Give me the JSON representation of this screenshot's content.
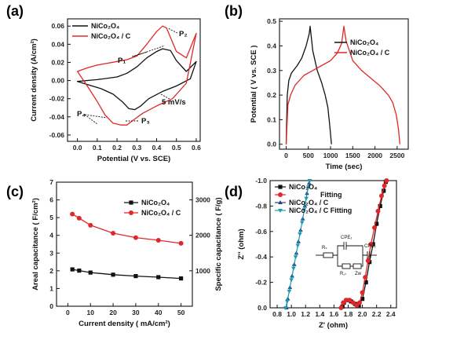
{
  "colors": {
    "black_series": "#111111",
    "red_series": "#e0282a",
    "blue_series": "#2a3f8f",
    "teal_series": "#18a0b0",
    "axis": "#111111"
  },
  "chart_data": [
    {
      "id": "a",
      "panel_label": "(a)",
      "type": "line",
      "xlabel": "Potential (V vs. SCE)",
      "ylabel": "Current density (A/cm²)",
      "xlim": [
        -0.05,
        0.62
      ],
      "ylim": [
        -0.067,
        0.068
      ],
      "xticks": [
        "0.0",
        "0.1",
        "0.2",
        "0.3",
        "0.4",
        "0.5",
        "0.6"
      ],
      "yticks": [
        "-0.06",
        "-0.04",
        "-0.02",
        "0.00",
        "0.02",
        "0.04",
        "0.06"
      ],
      "legend": "top-left",
      "annotations": [
        "P₁",
        "P₂",
        "P₃",
        "P₄",
        "5 mV/s"
      ],
      "series": [
        {
          "name": "NiCo₂O₄",
          "color": "#111111",
          "x": [
            0.0,
            0.1,
            0.2,
            0.25,
            0.3,
            0.35,
            0.4,
            0.43,
            0.47,
            0.5,
            0.55,
            0.6,
            0.57,
            0.5,
            0.43,
            0.36,
            0.32,
            0.29,
            0.26,
            0.23,
            0.18,
            0.12,
            0.06,
            0.0
          ],
          "y": [
            -0.001,
            0.001,
            0.004,
            0.008,
            0.015,
            0.025,
            0.032,
            0.035,
            0.033,
            0.022,
            0.01,
            0.021,
            0.002,
            -0.006,
            -0.012,
            -0.02,
            -0.028,
            -0.032,
            -0.031,
            -0.024,
            -0.015,
            -0.009,
            -0.005,
            -0.001
          ]
        },
        {
          "name": "NiCo₂O₄ / C",
          "color": "#e0282a",
          "x": [
            0.0,
            0.05,
            0.1,
            0.15,
            0.2,
            0.25,
            0.3,
            0.35,
            0.4,
            0.43,
            0.45,
            0.5,
            0.55,
            0.6,
            0.55,
            0.48,
            0.4,
            0.33,
            0.28,
            0.25,
            0.22,
            0.18,
            0.14,
            0.1,
            0.05,
            0.0
          ],
          "y": [
            0.01,
            0.014,
            0.017,
            0.019,
            0.021,
            0.023,
            0.027,
            0.04,
            0.054,
            0.06,
            0.058,
            0.032,
            0.025,
            0.052,
            -0.003,
            -0.02,
            -0.028,
            -0.036,
            -0.044,
            -0.049,
            -0.049,
            -0.047,
            -0.038,
            -0.023,
            -0.006,
            0.01
          ]
        }
      ]
    },
    {
      "id": "b",
      "panel_label": "(b)",
      "type": "line",
      "xlabel": "Time (sec)",
      "ylabel": "Potential ( V vs. SCE )",
      "xlim": [
        -150,
        2750
      ],
      "ylim": [
        -0.02,
        0.51
      ],
      "xticks": [
        "0",
        "500",
        "1000",
        "1500",
        "2000",
        "2500"
      ],
      "yticks": [
        "0.0",
        "0.1",
        "0.2",
        "0.3",
        "0.4",
        "0.5"
      ],
      "legend": "top-right",
      "series": [
        {
          "name": "NiCo₂O₄",
          "color": "#111111",
          "x": [
            0,
            25,
            60,
            120,
            250,
            350,
            450,
            520,
            540,
            600,
            700,
            800,
            880,
            940,
            980,
            1020
          ],
          "y": [
            0.0,
            0.2,
            0.26,
            0.29,
            0.32,
            0.35,
            0.4,
            0.45,
            0.48,
            0.38,
            0.3,
            0.25,
            0.2,
            0.15,
            0.08,
            0.0
          ]
        },
        {
          "name": "NiCo₂O₄ / C",
          "color": "#e0282a",
          "x": [
            0,
            40,
            100,
            200,
            400,
            600,
            800,
            1000,
            1150,
            1250,
            1300,
            1350,
            1500,
            1700,
            1900,
            2100,
            2300,
            2400,
            2480,
            2530,
            2560
          ],
          "y": [
            0.0,
            0.16,
            0.2,
            0.24,
            0.28,
            0.3,
            0.32,
            0.34,
            0.37,
            0.41,
            0.48,
            0.42,
            0.34,
            0.3,
            0.27,
            0.24,
            0.2,
            0.17,
            0.12,
            0.06,
            0.0
          ]
        }
      ]
    },
    {
      "id": "c",
      "panel_label": "(c)",
      "type": "line",
      "xlabel": "Current density ( mA/cm²)",
      "ylabel": "Areal capacitance ( F/cm²)",
      "ylabel_right": "Specific capacitance ( F/g)",
      "xlim": [
        -5,
        55
      ],
      "ylim": [
        0,
        7
      ],
      "xticks": [
        "0",
        "10",
        "20",
        "30",
        "40",
        "50"
      ],
      "yticks": [
        "0",
        "1",
        "2",
        "3",
        "4",
        "5",
        "6",
        "7"
      ],
      "yticks_right": [
        "1000",
        "2000",
        "3000"
      ],
      "legend": "top-right",
      "series": [
        {
          "name": "NiCo₂O₄",
          "color": "#111111",
          "marker": "square",
          "x": [
            2,
            5,
            10,
            20,
            30,
            40,
            50
          ],
          "y": [
            2.08,
            2.01,
            1.9,
            1.78,
            1.7,
            1.64,
            1.57
          ]
        },
        {
          "name": "NiCo₂O₄ / C",
          "color": "#e0282a",
          "marker": "circle",
          "x": [
            2,
            5,
            10,
            20,
            30,
            40,
            50
          ],
          "y": [
            5.2,
            4.97,
            4.57,
            4.12,
            3.87,
            3.72,
            3.55
          ]
        }
      ]
    },
    {
      "id": "d",
      "panel_label": "(d)",
      "type": "scatter",
      "xlabel": "Z' (ohm)",
      "ylabel": "Z'' (ohm)",
      "xlim": [
        0.7,
        2.48
      ],
      "ylim": [
        0.0,
        -1.0
      ],
      "xticks": [
        "0.8",
        "1.0",
        "1.2",
        "1.4",
        "1.6",
        "1.8",
        "2.0",
        "2.2",
        "2.4"
      ],
      "yticks": [
        "0.0",
        "-0.2",
        "-0.4",
        "-0.6",
        "-0.8",
        "-1.0"
      ],
      "legend": "top-left",
      "circuit_labels": [
        "Rₛ",
        "CPE₁",
        "CPE₂",
        "R꜀ₜ",
        "Zw"
      ],
      "series": [
        {
          "name": "NiCo₂O₄",
          "color": "#111111",
          "marker": "square",
          "x": [
            1.72,
            1.74,
            1.78,
            1.84,
            1.9,
            1.95,
            2.0,
            2.05,
            2.1,
            2.15,
            2.2,
            2.25,
            2.3,
            2.33
          ],
          "y": [
            -0.01,
            -0.04,
            -0.06,
            -0.05,
            -0.03,
            -0.02,
            -0.07,
            -0.2,
            -0.36,
            -0.5,
            -0.66,
            -0.8,
            -0.92,
            -0.99
          ]
        },
        {
          "name": "Fitting",
          "color": "#e0282a",
          "marker": "circle",
          "x": [
            1.7,
            1.73,
            1.77,
            1.82,
            1.87,
            1.92,
            1.96,
            2.0,
            2.04,
            2.08,
            2.12,
            2.17,
            2.22,
            2.27,
            2.31,
            2.34
          ],
          "y": [
            -0.0,
            -0.04,
            -0.06,
            -0.06,
            -0.04,
            -0.02,
            -0.04,
            -0.12,
            -0.24,
            -0.37,
            -0.5,
            -0.63,
            -0.76,
            -0.88,
            -0.96,
            -1.0
          ]
        },
        {
          "name": "NiCo₂O₄ / C",
          "color": "#2a3f8f",
          "marker": "triangle",
          "x": [
            0.93,
            0.95,
            0.98,
            1.01,
            1.04,
            1.07,
            1.1,
            1.13,
            1.16,
            1.19,
            1.22,
            1.25
          ],
          "y": [
            -0.0,
            -0.07,
            -0.16,
            -0.25,
            -0.34,
            -0.43,
            -0.52,
            -0.61,
            -0.7,
            -0.8,
            -0.9,
            -0.98
          ]
        },
        {
          "name": "NiCo₂O₄ / C Fitting",
          "color": "#18a0b0",
          "marker": "triangle-down",
          "x": [
            0.92,
            0.94,
            0.97,
            1.0,
            1.03,
            1.06,
            1.09,
            1.12,
            1.15,
            1.18,
            1.21,
            1.24,
            1.26
          ],
          "y": [
            -0.0,
            -0.05,
            -0.13,
            -0.22,
            -0.31,
            -0.4,
            -0.49,
            -0.58,
            -0.67,
            -0.77,
            -0.86,
            -0.95,
            -1.0
          ]
        }
      ]
    }
  ]
}
